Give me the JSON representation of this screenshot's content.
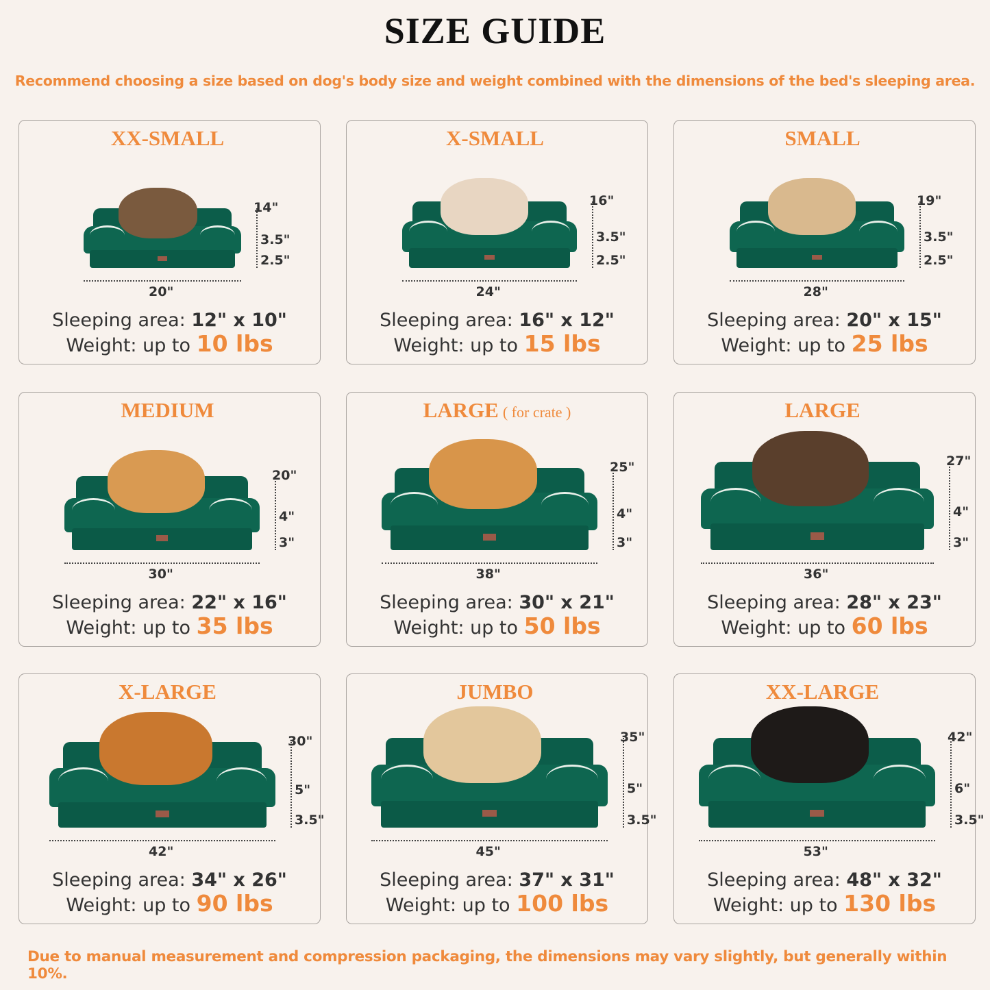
{
  "header": {
    "title": "SIZE GUIDE",
    "subtitle": "Recommend choosing a size based on dog's body size and weight combined with the dimensions of the bed's sleeping area."
  },
  "labels": {
    "sleeping_area": "Sleeping area:",
    "weight": "Weight: up to"
  },
  "cards": [
    {
      "name": "XX-SMALL",
      "note": "",
      "length": "20\"",
      "depth": "14\"",
      "bolster": "3.5\"",
      "base": "2.5\"",
      "sleeping": "12\" x 10\"",
      "weight": "10 lbs",
      "animal": "cat"
    },
    {
      "name": "X-SMALL",
      "note": "",
      "length": "24\"",
      "depth": "16\"",
      "bolster": "3.5\"",
      "base": "2.5\"",
      "sleeping": "16\" x 12\"",
      "weight": "15 lbs",
      "animal": "dog"
    },
    {
      "name": "SMALL",
      "note": "",
      "length": "28\"",
      "depth": "19\"",
      "bolster": "3.5\"",
      "base": "2.5\"",
      "sleeping": "20\" x 15\"",
      "weight": "25 lbs",
      "animal": "dog"
    },
    {
      "name": "MEDIUM",
      "note": "",
      "length": "30\"",
      "depth": "20\"",
      "bolster": "4\"",
      "base": "3\"",
      "sleeping": "22\" x 16\"",
      "weight": "35 lbs",
      "animal": "dog"
    },
    {
      "name": "LARGE",
      "note": "( for crate )",
      "length": "38\"",
      "depth": "25\"",
      "bolster": "4\"",
      "base": "3\"",
      "sleeping": "30\" x 21\"",
      "weight": "50 lbs",
      "animal": "dog"
    },
    {
      "name": "LARGE",
      "note": "",
      "length": "36\"",
      "depth": "27\"",
      "bolster": "4\"",
      "base": "3\"",
      "sleeping": "28\" x 23\"",
      "weight": "60 lbs",
      "animal": "dog"
    },
    {
      "name": "X-LARGE",
      "note": "",
      "length": "42\"",
      "depth": "30\"",
      "bolster": "5\"",
      "base": "3.5\"",
      "sleeping": "34\" x 26\"",
      "weight": "90 lbs",
      "animal": "dog"
    },
    {
      "name": "JUMBO",
      "note": "",
      "length": "45\"",
      "depth": "35\"",
      "bolster": "5\"",
      "base": "3.5\"",
      "sleeping": "37\" x 31\"",
      "weight": "100 lbs",
      "animal": "dog"
    },
    {
      "name": "XX-LARGE",
      "note": "",
      "length": "53\"",
      "depth": "42\"",
      "bolster": "6\"",
      "base": "3.5\"",
      "sleeping": "48\" x 32\"",
      "weight": "130 lbs",
      "animal": "dog"
    }
  ],
  "footer": "Due to manual measurement and compression packaging, the dimensions may vary slightly, but generally within 10%.",
  "colors": {
    "accent": "#ef8a3c",
    "bed": "#0e6650",
    "background": "#f8f2ed"
  }
}
